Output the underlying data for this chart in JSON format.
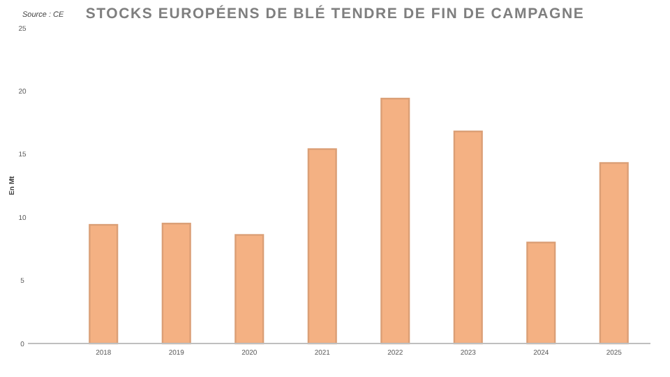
{
  "chart_data": {
    "type": "bar",
    "title": "STOCKS EUROPÉENS DE BLÉ TENDRE DE FIN DE CAMPAGNE",
    "ylabel": "En Mt",
    "annotations": [
      "Source : CE"
    ],
    "categories": [
      "2018",
      "2019",
      "2020",
      "2021",
      "2022",
      "2023",
      "2024",
      "2025"
    ],
    "values": [
      9.4,
      9.5,
      8.6,
      15.4,
      19.4,
      16.8,
      8.0,
      14.3
    ],
    "color": "#f4b183",
    "ylim": [
      0,
      25
    ],
    "yticks": [
      0,
      5,
      10,
      15,
      20,
      25
    ]
  }
}
